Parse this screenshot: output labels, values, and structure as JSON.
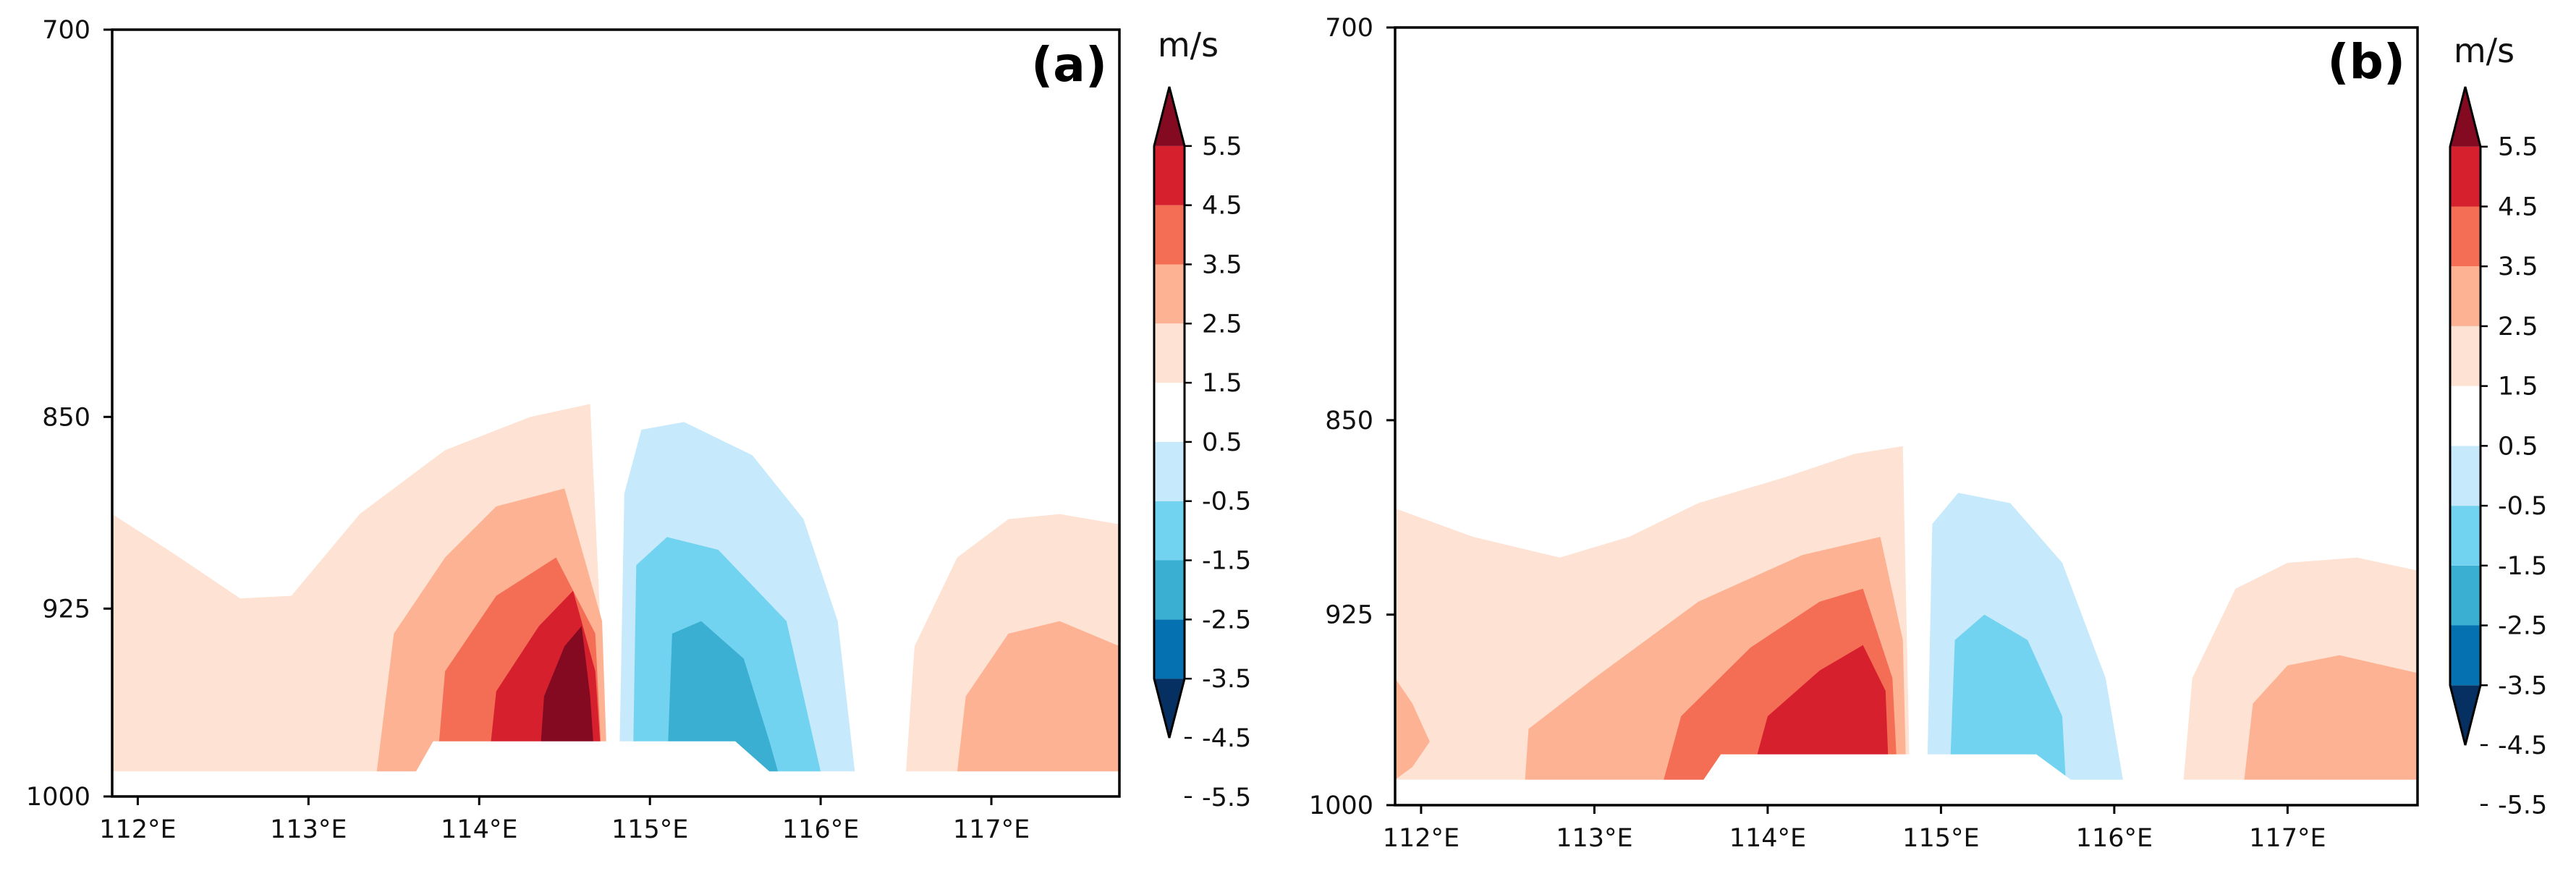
{
  "chart_data": [
    {
      "type": "heatmap",
      "panel_label": "(a)",
      "colorbar_unit": "m/s",
      "x_ticks": [
        112,
        113,
        114,
        115,
        116,
        117
      ],
      "x_tick_labels": [
        "112°E",
        "113°E",
        "114°E",
        "115°E",
        "116°E",
        "117°E"
      ],
      "y_ticks": [
        700,
        850,
        925,
        1000
      ],
      "y_tick_labels": [
        "700",
        "850",
        "925",
        "1000"
      ],
      "xlim": [
        111.85,
        117.75
      ],
      "ylim": [
        1000,
        700
      ],
      "terrain_base": 990,
      "contours": [
        {
          "level": "1.5",
          "pts": [
            [
              111.85,
              888
            ],
            [
              112.2,
              903
            ],
            [
              112.6,
              921
            ],
            [
              112.9,
              920
            ],
            [
              113.3,
              888
            ],
            [
              113.8,
              863
            ],
            [
              114.3,
              850
            ],
            [
              114.65,
              845
            ],
            [
              114.75,
              990
            ],
            [
              111.85,
              990
            ]
          ]
        },
        {
          "level": "1.5",
          "pts": [
            [
              116.5,
              990
            ],
            [
              116.55,
              940
            ],
            [
              116.8,
              905
            ],
            [
              117.1,
              890
            ],
            [
              117.4,
              888
            ],
            [
              117.75,
              892
            ],
            [
              117.75,
              990
            ]
          ]
        },
        {
          "level": "-1.5",
          "pts": [
            [
              114.82,
              990
            ],
            [
              114.85,
              880
            ],
            [
              114.95,
              855
            ],
            [
              115.2,
              852
            ],
            [
              115.6,
              865
            ],
            [
              115.9,
              890
            ],
            [
              116.1,
              930
            ],
            [
              116.2,
              990
            ]
          ]
        },
        {
          "level": "2.5",
          "pts": [
            [
              113.4,
              990
            ],
            [
              113.5,
              935
            ],
            [
              113.8,
              905
            ],
            [
              114.1,
              885
            ],
            [
              114.5,
              878
            ],
            [
              114.72,
              930
            ],
            [
              114.75,
              990
            ]
          ]
        },
        {
          "level": "2.5",
          "pts": [
            [
              116.8,
              990
            ],
            [
              116.85,
              960
            ],
            [
              117.1,
              935
            ],
            [
              117.4,
              930
            ],
            [
              117.75,
              940
            ],
            [
              117.75,
              990
            ]
          ]
        },
        {
          "level": "-2.5",
          "pts": [
            [
              114.9,
              990
            ],
            [
              114.92,
              908
            ],
            [
              115.1,
              897
            ],
            [
              115.4,
              902
            ],
            [
              115.8,
              930
            ],
            [
              115.95,
              975
            ],
            [
              116.0,
              990
            ]
          ]
        },
        {
          "level": "3.5",
          "pts": [
            [
              113.75,
              990
            ],
            [
              113.8,
              950
            ],
            [
              114.1,
              920
            ],
            [
              114.45,
              905
            ],
            [
              114.68,
              935
            ],
            [
              114.72,
              990
            ]
          ]
        },
        {
          "level": "-3.5",
          "pts": [
            [
              115.1,
              990
            ],
            [
              115.13,
              935
            ],
            [
              115.3,
              930
            ],
            [
              115.55,
              945
            ],
            [
              115.7,
              978
            ],
            [
              115.75,
              990
            ]
          ]
        },
        {
          "level": "4.5",
          "pts": [
            [
              114.05,
              990
            ],
            [
              114.1,
              958
            ],
            [
              114.35,
              932
            ],
            [
              114.55,
              918
            ],
            [
              114.68,
              950
            ],
            [
              114.72,
              990
            ]
          ]
        },
        {
          "level": "5.5",
          "pts": [
            [
              114.35,
              990
            ],
            [
              114.38,
              960
            ],
            [
              114.5,
              940
            ],
            [
              114.6,
              932
            ],
            [
              114.65,
              960
            ],
            [
              114.68,
              990
            ]
          ]
        }
      ],
      "terrain": [
        [
          111.85,
          990
        ],
        [
          113.63,
          990
        ],
        [
          113.73,
          978
        ],
        [
          115.5,
          978
        ],
        [
          115.7,
          990
        ],
        [
          117.75,
          990
        ],
        [
          117.75,
          1000
        ],
        [
          111.85,
          1000
        ]
      ]
    },
    {
      "type": "heatmap",
      "panel_label": "(b)",
      "colorbar_unit": "m/s",
      "x_ticks": [
        112,
        113,
        114,
        115,
        116,
        117
      ],
      "x_tick_labels": [
        "112°E",
        "113°E",
        "114°E",
        "115°E",
        "116°E",
        "117°E"
      ],
      "y_ticks": [
        700,
        850,
        925,
        1000
      ],
      "y_tick_labels": [
        "700",
        "850",
        "925",
        "1000"
      ],
      "xlim": [
        111.85,
        117.75
      ],
      "ylim": [
        1000,
        700
      ],
      "terrain_base": 990,
      "contours": [
        {
          "level": "1.5",
          "pts": [
            [
              111.85,
              884
            ],
            [
              112.3,
              895
            ],
            [
              112.8,
              903
            ],
            [
              113.2,
              895
            ],
            [
              113.6,
              882
            ],
            [
              114.1,
              872
            ],
            [
              114.5,
              863
            ],
            [
              114.78,
              860
            ],
            [
              114.82,
              990
            ],
            [
              111.85,
              990
            ]
          ]
        },
        {
          "level": "1.5",
          "pts": [
            [
              116.4,
              990
            ],
            [
              116.45,
              950
            ],
            [
              116.7,
              915
            ],
            [
              117.0,
              905
            ],
            [
              117.4,
              903
            ],
            [
              117.75,
              908
            ],
            [
              117.75,
              990
            ]
          ]
        },
        {
          "level": "-1.5",
          "pts": [
            [
              114.92,
              990
            ],
            [
              114.95,
              890
            ],
            [
              115.1,
              878
            ],
            [
              115.4,
              882
            ],
            [
              115.7,
              905
            ],
            [
              115.95,
              950
            ],
            [
              116.05,
              990
            ]
          ]
        },
        {
          "level": "2.5",
          "pts": [
            [
              111.85,
              950
            ],
            [
              111.95,
              960
            ],
            [
              112.05,
              975
            ],
            [
              111.95,
              985
            ],
            [
              111.85,
              990
            ]
          ]
        },
        {
          "level": "2.5",
          "pts": [
            [
              112.6,
              990
            ],
            [
              112.62,
              970
            ],
            [
              113.0,
              950
            ],
            [
              113.6,
              920
            ],
            [
              114.2,
              902
            ],
            [
              114.65,
              895
            ],
            [
              114.78,
              935
            ],
            [
              114.8,
              990
            ]
          ]
        },
        {
          "level": "2.5",
          "pts": [
            [
              116.75,
              990
            ],
            [
              116.8,
              960
            ],
            [
              117.0,
              945
            ],
            [
              117.3,
              941
            ],
            [
              117.75,
              948
            ],
            [
              117.75,
              990
            ]
          ]
        },
        {
          "level": "-2.5",
          "pts": [
            [
              115.05,
              990
            ],
            [
              115.08,
              935
            ],
            [
              115.25,
              925
            ],
            [
              115.5,
              935
            ],
            [
              115.7,
              965
            ],
            [
              115.72,
              990
            ]
          ]
        },
        {
          "level": "3.5",
          "pts": [
            [
              113.4,
              990
            ],
            [
              113.5,
              965
            ],
            [
              113.9,
              938
            ],
            [
              114.3,
              920
            ],
            [
              114.55,
              915
            ],
            [
              114.72,
              950
            ],
            [
              114.75,
              990
            ]
          ]
        },
        {
          "level": "4.5",
          "pts": [
            [
              113.9,
              990
            ],
            [
              114.0,
              965
            ],
            [
              114.3,
              947
            ],
            [
              114.55,
              937
            ],
            [
              114.68,
              955
            ],
            [
              114.7,
              990
            ]
          ]
        }
      ],
      "terrain": [
        [
          111.85,
          990
        ],
        [
          113.63,
          990
        ],
        [
          113.73,
          980
        ],
        [
          115.55,
          980
        ],
        [
          115.75,
          990
        ],
        [
          117.75,
          990
        ],
        [
          117.75,
          1000
        ],
        [
          111.85,
          1000
        ]
      ]
    }
  ],
  "colorbar": {
    "colors": [
      "#053061",
      "#0571b0",
      "#3aafd2",
      "#72d3f0",
      "#c6e9fb",
      "#ffffff",
      "#fee2d3",
      "#fdb393",
      "#f46d55",
      "#d6202e",
      "#840a22"
    ],
    "level_keys": [
      "-5.5",
      "-4.5",
      "-3.5",
      "-2.5",
      "-1.5",
      "0",
      "1.5",
      "2.5",
      "3.5",
      "4.5",
      "5.5"
    ],
    "boundaries": [
      "5.5",
      "4.5",
      "3.5",
      "2.5",
      "1.5",
      "0.5",
      "-0.5",
      "-1.5",
      "-2.5",
      "-3.5",
      "-4.5",
      "-5.5"
    ]
  }
}
